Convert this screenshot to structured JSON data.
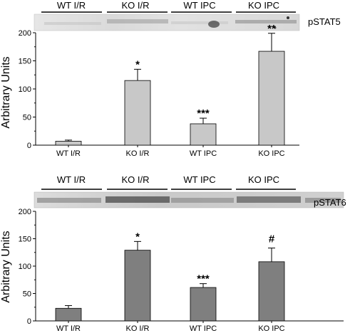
{
  "chart_data": [
    {
      "type": "bar",
      "blot_label": "pSTAT5",
      "blot_groups": [
        "WT I/R",
        "KO I/R",
        "WT IPC",
        "KO IPC"
      ],
      "categories": [
        "WT I/R",
        "KO I/R",
        "WT IPC",
        "KO IPC"
      ],
      "values": [
        7,
        115,
        38,
        167
      ],
      "errors": [
        2,
        20,
        10,
        32
      ],
      "significance": [
        "",
        "*",
        "***",
        "**"
      ],
      "ylabel": "Arbitrary Units",
      "ylim": [
        0,
        200
      ],
      "yticks": [
        0,
        50,
        100,
        150,
        200
      ],
      "bar_color": "#c8c8c8",
      "grid": false
    },
    {
      "type": "bar",
      "blot_label": "pSTAT6",
      "blot_groups": [
        "WT I/R",
        "KO I/R",
        "WT IPC",
        "KO IPC"
      ],
      "categories": [
        "WT I/R",
        "KO I/R",
        "WT IPC",
        "KO IPC"
      ],
      "values": [
        23,
        129,
        61,
        108
      ],
      "errors": [
        5,
        16,
        7,
        25
      ],
      "significance": [
        "",
        "*",
        "***",
        "#"
      ],
      "ylabel": "Arbitrary Units",
      "ylim": [
        0,
        200
      ],
      "yticks": [
        0,
        50,
        100,
        150,
        200
      ],
      "bar_color": "#7f7f7f",
      "grid": false
    }
  ]
}
